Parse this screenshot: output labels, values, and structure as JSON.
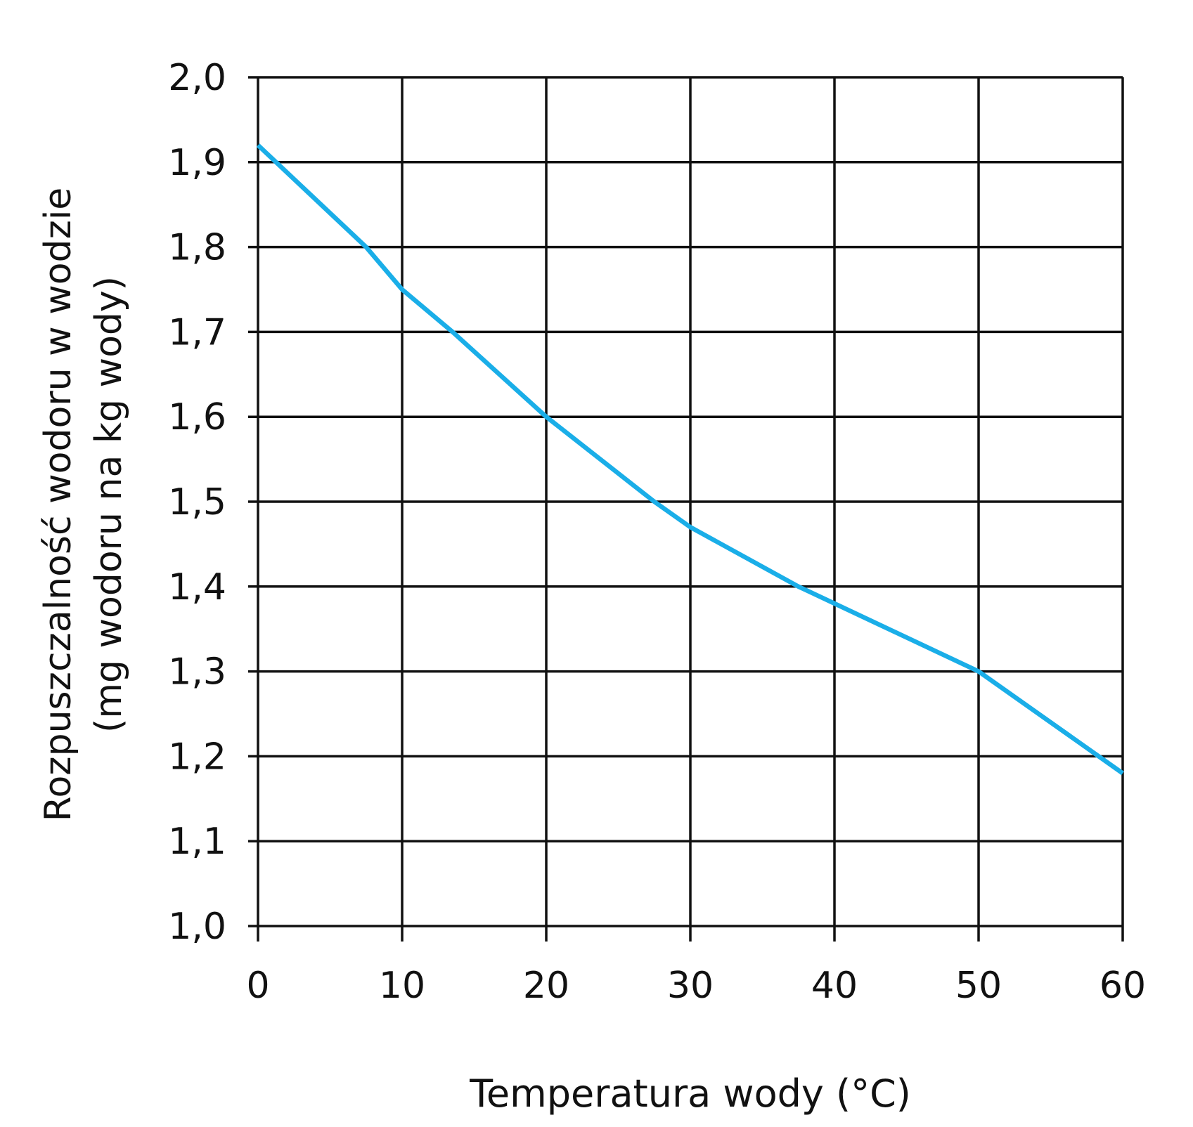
{
  "chart_data": {
    "type": "line",
    "title": "",
    "xlabel": "Temperatura wody (°C)",
    "ylabel": [
      "Rozpuszczalność wodoru w wodzie",
      "(mg wodoru na kg wody)"
    ],
    "xlim": [
      0,
      60
    ],
    "ylim": [
      1.0,
      2.0
    ],
    "xticks": [
      0,
      10,
      20,
      30,
      40,
      50,
      60
    ],
    "yticks": [
      1.0,
      1.1,
      1.2,
      1.3,
      1.4,
      1.5,
      1.6,
      1.7,
      1.8,
      1.9,
      2.0
    ],
    "xtick_labels": [
      "0",
      "10",
      "20",
      "30",
      "40",
      "50",
      "60"
    ],
    "ytick_labels": [
      "1,0",
      "1,1",
      "1,2",
      "1,3",
      "1,4",
      "1,5",
      "1,6",
      "1,7",
      "1,8",
      "1,9",
      "2,0"
    ],
    "grid": true,
    "series": [
      {
        "color": "#1aaee8",
        "x": [
          0,
          7.5,
          10,
          13.5,
          20,
          27.5,
          30,
          37.5,
          40,
          50,
          60
        ],
        "y": [
          1.92,
          1.8,
          1.75,
          1.7,
          1.6,
          1.5,
          1.47,
          1.4,
          1.38,
          1.3,
          1.18
        ]
      }
    ]
  }
}
